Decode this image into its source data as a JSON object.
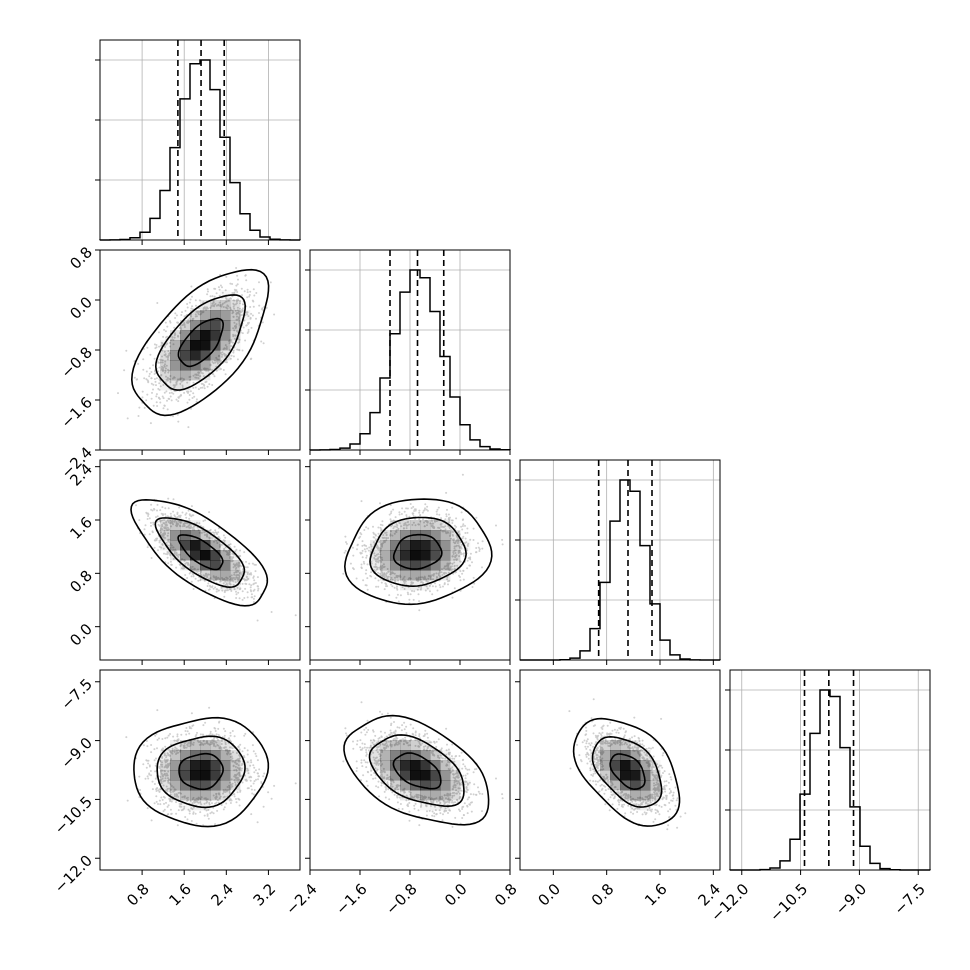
{
  "chart_data": {
    "type": "corner",
    "title": "",
    "parameters": [
      {
        "label": "",
        "mean": 1.92,
        "sd": 0.42,
        "quantiles": [
          1.48,
          1.92,
          2.36
        ],
        "range": [
          0.0,
          3.8
        ],
        "ticks": [
          "0.8",
          "1.6",
          "2.4",
          "3.2"
        ],
        "tick_values": [
          0.8,
          1.6,
          2.4,
          3.2
        ]
      },
      {
        "label": "",
        "mean": -0.68,
        "sd": 0.38,
        "quantiles": [
          -1.12,
          -0.68,
          -0.26
        ],
        "range": [
          -2.4,
          0.8
        ],
        "ticks": [
          "-2.4",
          "-1.6",
          "-0.8",
          "0.0",
          "0.8"
        ],
        "tick_values": [
          -2.4,
          -1.6,
          -0.8,
          0.0,
          0.8
        ]
      },
      {
        "label": "",
        "mean": 1.12,
        "sd": 0.26,
        "quantiles": [
          0.68,
          1.12,
          1.48
        ],
        "range": [
          -0.5,
          2.5
        ],
        "ticks": [
          "0.0",
          "0.8",
          "1.6",
          "2.4"
        ],
        "tick_values": [
          0.0,
          0.8,
          1.6,
          2.4
        ]
      },
      {
        "label": "",
        "mean": -9.78,
        "sd": 0.45,
        "quantiles": [
          -10.4,
          -9.78,
          -9.15
        ],
        "range": [
          -12.3,
          -7.2
        ],
        "ticks": [
          "-12.0",
          "-10.5",
          "-9.0",
          "-7.5"
        ],
        "tick_values": [
          -12.0,
          -10.5,
          -9.0,
          -7.5
        ]
      }
    ],
    "correlations": [
      {
        "i": 1,
        "j": 0,
        "rho": 0.6
      },
      {
        "i": 2,
        "j": 0,
        "rho": -0.7
      },
      {
        "i": 2,
        "j": 1,
        "rho": 0.1
      },
      {
        "i": 3,
        "j": 0,
        "rho": 0.05
      },
      {
        "i": 3,
        "j": 1,
        "rho": -0.45
      },
      {
        "i": 3,
        "j": 2,
        "rho": -0.45
      }
    ],
    "histogram_bins": 20,
    "contour_levels": [
      0.39,
      0.86,
      0.99
    ],
    "quantile_line_style": "dashed",
    "grid": true,
    "colors": {
      "line": "#000000",
      "grid": "#b0b0b0",
      "scatter": "#c8c8c8",
      "fill": "#000000"
    }
  }
}
